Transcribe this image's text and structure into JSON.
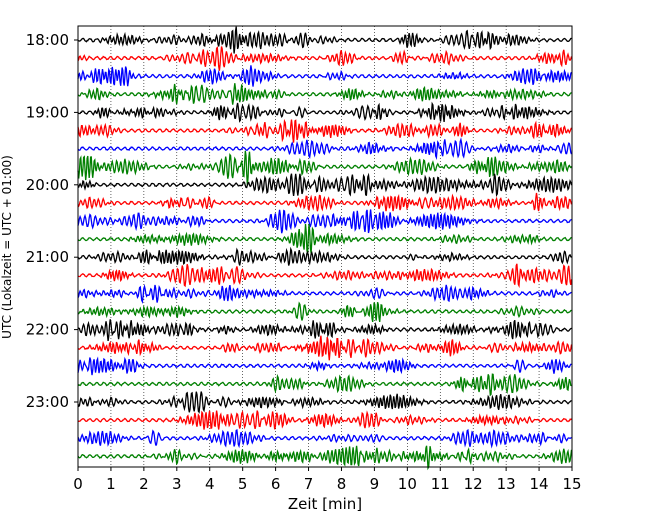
{
  "chart_data": {
    "type": "line",
    "chart_kind": "helicorder",
    "xlabel": "Zeit  [min]",
    "ylabel": "UTC (Lokalzeit = UTC + 01:00)",
    "x_ticks": [
      "0",
      "1",
      "2",
      "3",
      "4",
      "5",
      "6",
      "7",
      "8",
      "9",
      "10",
      "11",
      "12",
      "13",
      "14",
      "15"
    ],
    "xlim": [
      0,
      15
    ],
    "y_ticks": [
      "18:00",
      "19:00",
      "20:00",
      "21:00",
      "22:00",
      "23:00"
    ],
    "trace_interval_minutes": 15,
    "trace_count": 24,
    "trace_colors": [
      "#000000",
      "#ff0000",
      "#0000ff",
      "#008000"
    ],
    "vertical_grid": true,
    "grid_style": "dotted"
  }
}
